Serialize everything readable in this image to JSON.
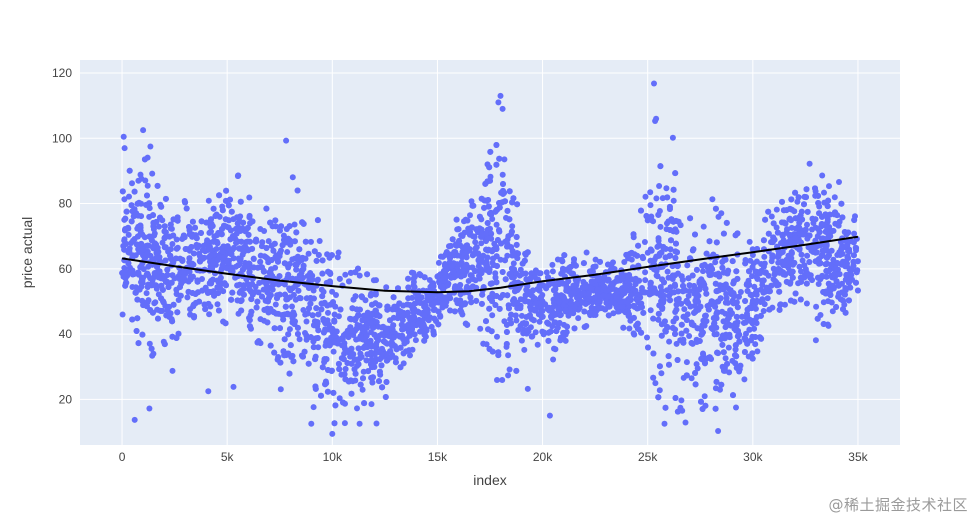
{
  "chart_data": {
    "type": "scatter",
    "xlabel": "index",
    "ylabel": "price actual",
    "xlim": [
      -2000,
      37000
    ],
    "ylim": [
      6,
      124
    ],
    "x_ticks": [
      0,
      5000,
      10000,
      15000,
      20000,
      25000,
      30000,
      35000
    ],
    "x_tick_labels": [
      "0",
      "5k",
      "10k",
      "15k",
      "20k",
      "25k",
      "30k",
      "35k"
    ],
    "y_ticks": [
      20,
      40,
      60,
      80,
      100,
      120
    ],
    "y_tick_labels": [
      "20",
      "40",
      "60",
      "80",
      "100",
      "120"
    ],
    "grid": true,
    "background_color": "#e5ecf6",
    "grid_color": "#ffffff",
    "scatter_color": "#636efa",
    "trend_color": "#000000",
    "scatter_envelope": {
      "x": [
        0,
        500,
        1000,
        1500,
        2000,
        2500,
        3000,
        3500,
        4000,
        4500,
        5000,
        5500,
        6000,
        6500,
        7000,
        7500,
        8000,
        8500,
        9000,
        9500,
        10000,
        10500,
        11000,
        11500,
        12000,
        12500,
        13000,
        13500,
        14000,
        14500,
        15000,
        15500,
        16000,
        16500,
        17000,
        17500,
        18000,
        18500,
        19000,
        19500,
        20000,
        20500,
        21000,
        21500,
        22000,
        22500,
        23000,
        23500,
        24000,
        24500,
        25000,
        25500,
        26000,
        26500,
        27000,
        27500,
        28000,
        28500,
        29000,
        29500,
        30000,
        30500,
        31000,
        31500,
        32000,
        32500,
        33000,
        33500,
        34000,
        34500,
        35000
      ],
      "upper": [
        84,
        95,
        99,
        92,
        85,
        83,
        82,
        78,
        80,
        85,
        88,
        89,
        84,
        78,
        80,
        82,
        93,
        84,
        78,
        76,
        73,
        66,
        60,
        61,
        57,
        56,
        58,
        60,
        59,
        57,
        61,
        73,
        80,
        82,
        86,
        97,
        113,
        96,
        70,
        66,
        64,
        65,
        66,
        67,
        66,
        63,
        64,
        62,
        65,
        76,
        85,
        95,
        100,
        84,
        78,
        80,
        82,
        79,
        75,
        73,
        74,
        76,
        80,
        82,
        84,
        88,
        92,
        87,
        84,
        80,
        79
      ],
      "lower": [
        44,
        40,
        35,
        32,
        33,
        37,
        43,
        45,
        42,
        40,
        43,
        41,
        39,
        36,
        34,
        30,
        26,
        22,
        18,
        14,
        11,
        10,
        13,
        15,
        16,
        18,
        22,
        30,
        36,
        38,
        40,
        43,
        45,
        42,
        38,
        30,
        22,
        26,
        31,
        36,
        33,
        32,
        36,
        40,
        42,
        44,
        45,
        43,
        40,
        36,
        30,
        18,
        15,
        14,
        13,
        16,
        18,
        14,
        12,
        20,
        28,
        36,
        44,
        48,
        50,
        48,
        44,
        42,
        40,
        45,
        47
      ]
    },
    "outlier_points": [
      {
        "x": 80,
        "y": 100.5
      },
      {
        "x": 1000,
        "y": 102.5
      },
      {
        "x": 120,
        "y": 97
      },
      {
        "x": 1350,
        "y": 97.5
      },
      {
        "x": 7800,
        "y": 99.3
      },
      {
        "x": 25300,
        "y": 116.8
      },
      {
        "x": 25350,
        "y": 105.3
      },
      {
        "x": 25400,
        "y": 106
      },
      {
        "x": 26200,
        "y": 100.2
      },
      {
        "x": 18000,
        "y": 113
      },
      {
        "x": 17900,
        "y": 111
      },
      {
        "x": 18100,
        "y": 109
      },
      {
        "x": 32700,
        "y": 92.2
      },
      {
        "x": 33300,
        "y": 88.6
      },
      {
        "x": 34100,
        "y": 86.6
      },
      {
        "x": 600,
        "y": 13.7
      },
      {
        "x": 1300,
        "y": 17.2
      },
      {
        "x": 2400,
        "y": 28.7
      },
      {
        "x": 4100,
        "y": 22.5
      },
      {
        "x": 5300,
        "y": 23.8
      },
      {
        "x": 7550,
        "y": 23.1
      },
      {
        "x": 9000,
        "y": 12.5
      },
      {
        "x": 10000,
        "y": 9.4
      },
      {
        "x": 10600,
        "y": 12.7
      },
      {
        "x": 11300,
        "y": 12.5
      },
      {
        "x": 12100,
        "y": 12.6
      },
      {
        "x": 19300,
        "y": 23.2
      },
      {
        "x": 20350,
        "y": 15
      },
      {
        "x": 25800,
        "y": 12.5
      },
      {
        "x": 26800,
        "y": 12.9
      },
      {
        "x": 28350,
        "y": 10.3
      },
      {
        "x": 29200,
        "y": 17.5
      },
      {
        "x": 29600,
        "y": 26.1
      },
      {
        "x": 33000,
        "y": 38.1
      },
      {
        "x": 33600,
        "y": 42.5
      },
      {
        "x": 34350,
        "y": 49
      }
    ],
    "trend_line": {
      "x": [
        0,
        2500,
        5000,
        7500,
        10000,
        12500,
        15000,
        16500,
        18000,
        20000,
        22500,
        25000,
        27500,
        30000,
        32500,
        35000
      ],
      "y": [
        63.2,
        60.8,
        58.5,
        56.4,
        54.7,
        53.3,
        52.8,
        53.1,
        54.2,
        56.2,
        58.2,
        60.6,
        62.9,
        65.1,
        67.4,
        69.8
      ]
    }
  },
  "watermark": "@稀土掘金技术社区"
}
